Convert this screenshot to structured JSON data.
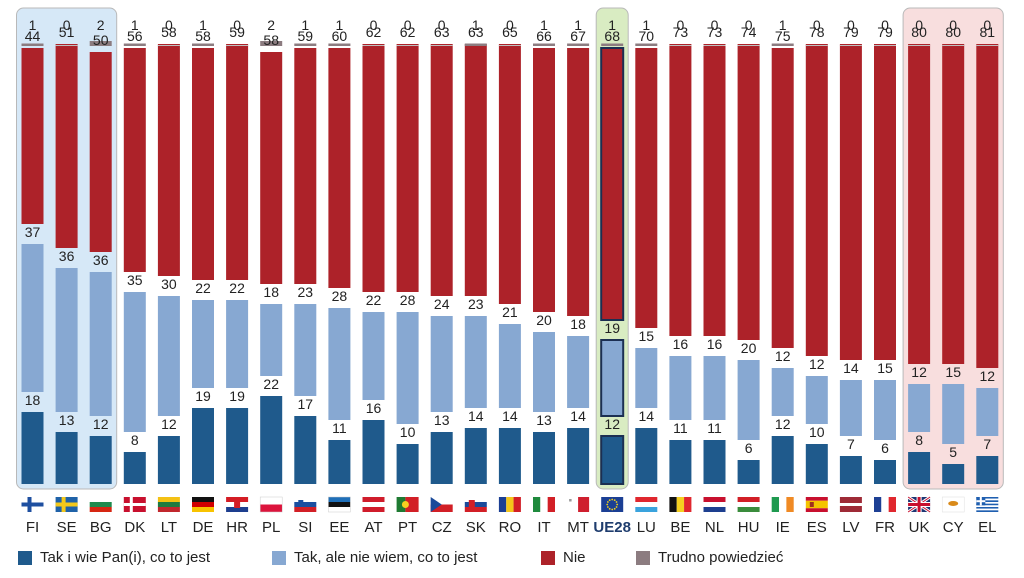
{
  "chart_data": {
    "type": "bar",
    "categories": [
      "FI",
      "SE",
      "BG",
      "DK",
      "LT",
      "DE",
      "HR",
      "PL",
      "SI",
      "EE",
      "AT",
      "PT",
      "CZ",
      "SK",
      "RO",
      "IT",
      "MT",
      "UE28",
      "LU",
      "BE",
      "NL",
      "HU",
      "IE",
      "ES",
      "LV",
      "FR",
      "UK",
      "CY",
      "EL"
    ],
    "series": [
      {
        "name": "Tak i wie Pan(i), co to jest",
        "color": "#1f5a8c",
        "values": [
          18,
          13,
          12,
          8,
          12,
          19,
          19,
          22,
          17,
          11,
          16,
          10,
          13,
          14,
          14,
          13,
          14,
          12,
          14,
          11,
          11,
          6,
          12,
          10,
          7,
          6,
          8,
          5,
          7
        ]
      },
      {
        "name": "Tak, ale nie wiem, co to jest",
        "color": "#87a8d2",
        "values": [
          37,
          36,
          36,
          35,
          30,
          22,
          22,
          18,
          23,
          28,
          22,
          28,
          24,
          23,
          21,
          20,
          18,
          19,
          15,
          16,
          16,
          20,
          12,
          12,
          14,
          15,
          12,
          15,
          12
        ]
      },
      {
        "name": "Nie",
        "color": "#ad2229",
        "values": [
          44,
          51,
          50,
          56,
          58,
          58,
          59,
          58,
          59,
          60,
          62,
          62,
          63,
          63,
          65,
          66,
          67,
          68,
          70,
          73,
          73,
          74,
          75,
          78,
          79,
          79,
          80,
          80,
          81
        ]
      },
      {
        "name": "Trudno powiedzieć",
        "color": "#8c7c80",
        "values": [
          1,
          0,
          2,
          1,
          0,
          1,
          0,
          2,
          1,
          1,
          0,
          0,
          0,
          1,
          0,
          1,
          1,
          1,
          1,
          0,
          0,
          0,
          1,
          0,
          0,
          0,
          0,
          0,
          0
        ]
      }
    ],
    "highlight_groups": [
      {
        "categories": [
          "FI",
          "SE",
          "BG"
        ],
        "color": "#d6e8f7"
      },
      {
        "categories": [
          "UE28"
        ],
        "color": "#d9ecc2"
      },
      {
        "categories": [
          "UK",
          "CY",
          "EL"
        ],
        "color": "#f8dede"
      }
    ],
    "highlight_category": "UE28",
    "ylim": [
      0,
      100
    ]
  }
}
